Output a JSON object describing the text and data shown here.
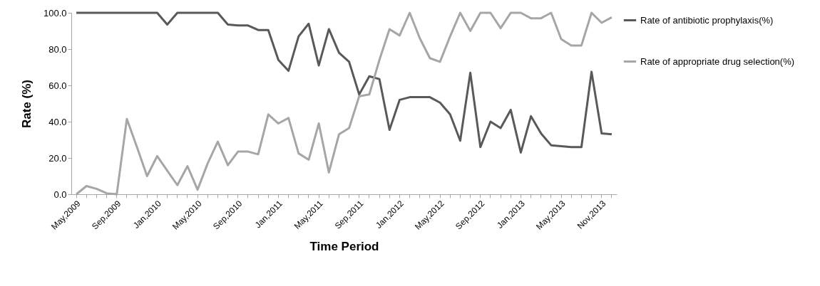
{
  "chart_data": {
    "type": "line",
    "xlabel": "Time Period",
    "ylabel": "Rate (%)",
    "categories": [
      "May,2009",
      null,
      null,
      null,
      "Sep,2009",
      null,
      null,
      null,
      "Jan,2010",
      null,
      null,
      null,
      "May,2010",
      null,
      null,
      null,
      "Sep,2010",
      null,
      null,
      null,
      "Jan,2011",
      null,
      null,
      null,
      "May,2011",
      null,
      null,
      null,
      "Sep,2011",
      null,
      null,
      null,
      "Jan,2012",
      null,
      null,
      null,
      "May,2012",
      null,
      null,
      null,
      "Sep,2012",
      null,
      null,
      null,
      "Jan,2013",
      null,
      null,
      null,
      "May,2013",
      null,
      null,
      null,
      "Nov,2013",
      null
    ],
    "series": [
      {
        "name": "Rate of antibiotic prophylaxis(%)",
        "color": "#595959",
        "values": [
          100,
          100,
          100,
          100,
          100,
          100,
          100,
          100,
          100,
          93.5,
          100,
          100,
          100,
          100,
          100,
          93.5,
          93,
          93,
          90.5,
          90.5,
          74,
          68,
          87,
          94,
          71,
          91,
          78,
          73,
          55,
          65,
          63.5,
          35.5,
          52,
          53.5,
          53.5,
          53.5,
          50.5,
          44,
          29.5,
          67,
          26,
          40,
          36.5,
          46.5,
          23,
          43,
          33.5,
          27,
          26.5,
          26,
          26,
          67.5,
          33.5,
          33
        ]
      },
      {
        "name": "Rate of  appropriate drug selection(%)",
        "color": "#a6a6a6",
        "values": [
          0,
          4.5,
          3,
          0.5,
          0,
          41.5,
          26,
          10,
          21,
          13,
          5,
          15.5,
          2.5,
          17,
          29,
          16,
          23.5,
          23.5,
          22,
          44,
          39,
          42,
          22.5,
          19,
          39,
          12,
          33,
          36.5,
          54,
          55,
          74,
          91,
          87.5,
          100,
          86,
          75,
          73,
          87,
          100,
          90,
          100,
          100,
          91.5,
          100,
          100,
          97,
          97,
          100,
          85.5,
          82,
          82,
          100,
          94.5,
          97.5
        ]
      }
    ],
    "ylim": [
      0,
      100
    ],
    "yticks": [
      {
        "value": 0,
        "label": "0.0"
      },
      {
        "value": 20,
        "label": "20.0"
      },
      {
        "value": 40,
        "label": "40.0"
      },
      {
        "value": 60,
        "label": "60.0"
      },
      {
        "value": 80,
        "label": "80.0"
      },
      {
        "value": 100,
        "label": "100.0"
      }
    ],
    "grid": false,
    "legend": "right",
    "marker": "none",
    "line_style": "solid"
  }
}
